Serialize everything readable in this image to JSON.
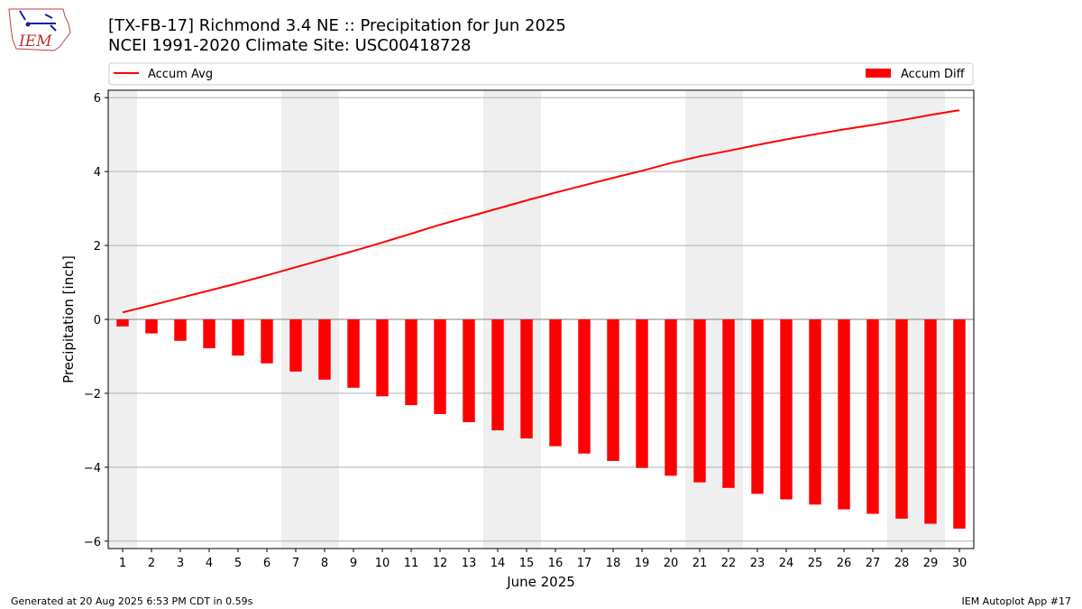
{
  "header": {
    "title_line1": "[TX-FB-17] Richmond 3.4 NE :: Precipitation for Jun 2025",
    "title_line2": "NCEI 1991-2020 Climate Site: USC00418728",
    "logo_text": "IEM"
  },
  "footer": {
    "generated": "Generated at 20 Aug 2025 6:53 PM CDT in 0.59s",
    "app": "IEM Autoplot App #17"
  },
  "colors": {
    "avg_line": "#ff0000",
    "diff_bar": "#ff0000",
    "weekend_shade": "#efefef",
    "grid": "#b0b0b0"
  },
  "chart_data": {
    "type": "bar",
    "xlabel": "June 2025",
    "ylabel": "Precipitation [inch]",
    "ylim": [
      -6.2,
      6.2
    ],
    "yticks": [
      -6,
      -4,
      -2,
      0,
      2,
      4,
      6
    ],
    "ytick_labels": [
      "−6",
      "−4",
      "−2",
      "0",
      "2",
      "4",
      "6"
    ],
    "grid": true,
    "legend_placement": "top",
    "x": [
      1,
      2,
      3,
      4,
      5,
      6,
      7,
      8,
      9,
      10,
      11,
      12,
      13,
      14,
      15,
      16,
      17,
      18,
      19,
      20,
      21,
      22,
      23,
      24,
      25,
      26,
      27,
      28,
      29,
      30
    ],
    "weekend_days": [
      1,
      7,
      8,
      14,
      15,
      21,
      22,
      28,
      29
    ],
    "series": [
      {
        "name": "Accum Avg",
        "kind": "line",
        "values": [
          0.19,
          0.38,
          0.58,
          0.78,
          0.98,
          1.19,
          1.41,
          1.63,
          1.85,
          2.08,
          2.32,
          2.56,
          2.78,
          3.0,
          3.22,
          3.43,
          3.63,
          3.83,
          4.02,
          4.23,
          4.41,
          4.56,
          4.72,
          4.87,
          5.01,
          5.14,
          5.26,
          5.39,
          5.53,
          5.66
        ]
      },
      {
        "name": "Accum Diff",
        "kind": "bar",
        "values": [
          -0.19,
          -0.38,
          -0.58,
          -0.78,
          -0.98,
          -1.19,
          -1.41,
          -1.63,
          -1.85,
          -2.08,
          -2.32,
          -2.56,
          -2.78,
          -3.0,
          -3.22,
          -3.43,
          -3.63,
          -3.83,
          -4.02,
          -4.23,
          -4.41,
          -4.56,
          -4.72,
          -4.87,
          -5.01,
          -5.14,
          -5.26,
          -5.39,
          -5.53,
          -5.66
        ]
      }
    ]
  }
}
